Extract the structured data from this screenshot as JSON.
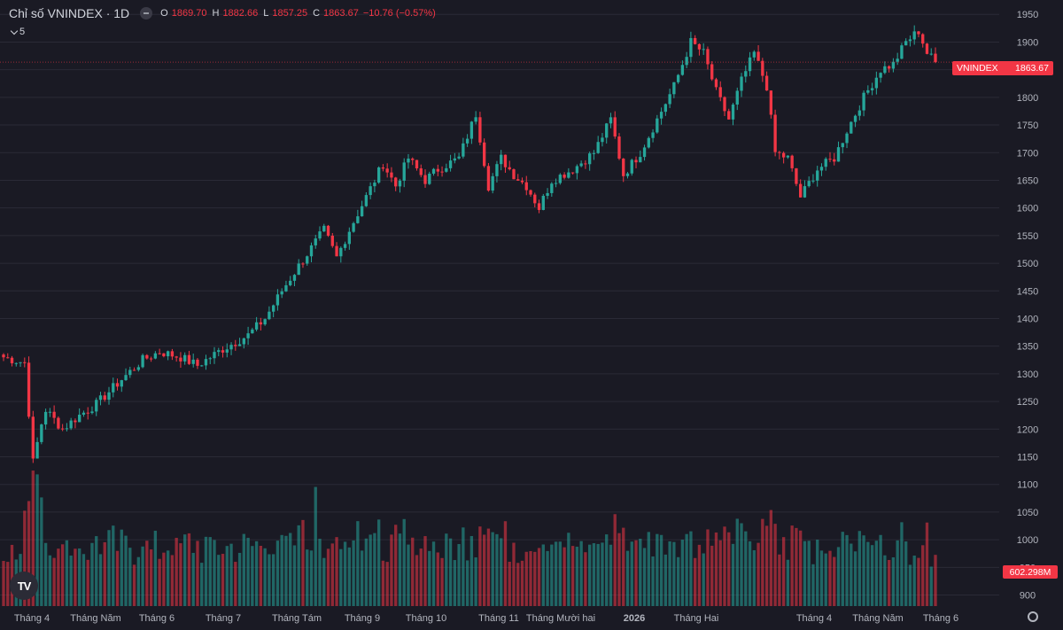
{
  "header": {
    "title": "Chỉ số VNINDEX · 1D",
    "ohlc": [
      {
        "key": "O",
        "value": "1869.70"
      },
      {
        "key": "H",
        "value": "1882.66"
      },
      {
        "key": "L",
        "value": "1857.25"
      },
      {
        "key": "C",
        "value": "1863.67"
      }
    ],
    "change": "−10.76 (−0.57%)",
    "collapse_count": "5"
  },
  "price_badge": {
    "label": "VNINDEX",
    "value": "1863.67"
  },
  "volume_badge": {
    "value": "602.298M"
  },
  "logo_text": "TV",
  "colors": {
    "up": "#26a69a",
    "down": "#f23645",
    "background": "#1a1a24",
    "grid": "#2a2a36"
  },
  "chart_data": {
    "type": "candlestick",
    "y_axis": {
      "ticks": [
        900,
        950,
        1000,
        1050,
        1100,
        1150,
        1200,
        1250,
        1300,
        1350,
        1400,
        1450,
        1500,
        1550,
        1600,
        1650,
        1700,
        1750,
        1800,
        1850,
        1900,
        1950
      ],
      "range": [
        880,
        1960
      ]
    },
    "x_axis": {
      "labels": [
        "Tháng 4",
        "Tháng Năm",
        "Tháng 6",
        "Tháng 7",
        "Tháng Tám",
        "Tháng 9",
        "Tháng 10",
        "Tháng 11",
        "Tháng Mười hai",
        "2026",
        "Tháng Hai",
        "Tháng 4",
        "Tháng Năm",
        "Tháng 6"
      ],
      "bold": [
        "2026"
      ]
    },
    "last_close": 1863.67,
    "path": [
      [
        0,
        1330
      ],
      [
        5,
        1320
      ],
      [
        6,
        1230
      ],
      [
        7,
        1140
      ],
      [
        9,
        1210
      ],
      [
        10,
        1235
      ],
      [
        14,
        1200
      ],
      [
        18,
        1225
      ],
      [
        22,
        1245
      ],
      [
        28,
        1290
      ],
      [
        33,
        1325
      ],
      [
        37,
        1340
      ],
      [
        42,
        1330
      ],
      [
        46,
        1315
      ],
      [
        52,
        1345
      ],
      [
        58,
        1370
      ],
      [
        62,
        1400
      ],
      [
        66,
        1450
      ],
      [
        70,
        1495
      ],
      [
        76,
        1560
      ],
      [
        79,
        1510
      ],
      [
        82,
        1560
      ],
      [
        86,
        1620
      ],
      [
        90,
        1680
      ],
      [
        93,
        1640
      ],
      [
        96,
        1690
      ],
      [
        100,
        1650
      ],
      [
        103,
        1670
      ],
      [
        108,
        1690
      ],
      [
        112,
        1770
      ],
      [
        115,
        1640
      ],
      [
        118,
        1690
      ],
      [
        121,
        1660
      ],
      [
        124,
        1640
      ],
      [
        127,
        1600
      ],
      [
        130,
        1650
      ],
      [
        135,
        1670
      ],
      [
        140,
        1700
      ],
      [
        144,
        1760
      ],
      [
        147,
        1660
      ],
      [
        151,
        1700
      ],
      [
        155,
        1760
      ],
      [
        159,
        1820
      ],
      [
        163,
        1900
      ],
      [
        166,
        1880
      ],
      [
        169,
        1810
      ],
      [
        172,
        1760
      ],
      [
        175,
        1830
      ],
      [
        178,
        1880
      ],
      [
        181,
        1820
      ],
      [
        183,
        1700
      ],
      [
        186,
        1690
      ],
      [
        189,
        1620
      ],
      [
        193,
        1670
      ],
      [
        197,
        1690
      ],
      [
        200,
        1740
      ],
      [
        204,
        1800
      ],
      [
        208,
        1850
      ],
      [
        211,
        1860
      ],
      [
        214,
        1900
      ],
      [
        217,
        1920
      ],
      [
        219,
        1880
      ],
      [
        221,
        1863.67
      ]
    ],
    "volume_axis": {
      "range": [
        880,
        1960
      ]
    }
  }
}
